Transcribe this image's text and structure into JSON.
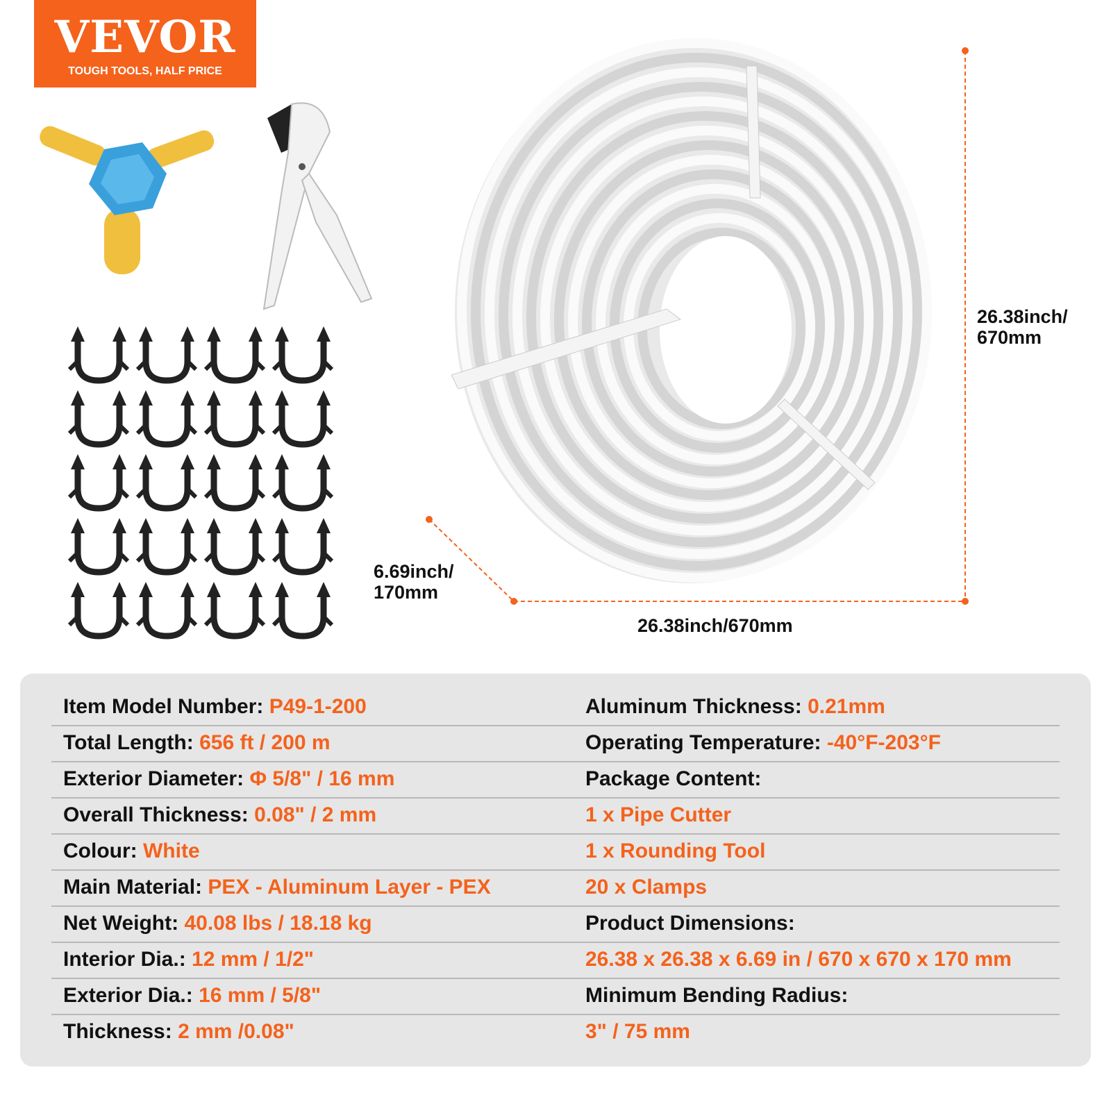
{
  "brand": {
    "name": "VEVOR",
    "tagline": "TOUGH TOOLS, HALF PRICE",
    "color": "#f4621c"
  },
  "dimensions": {
    "height": "26.38inch/\n670mm",
    "height_l1": "26.38inch/",
    "height_l2": "670mm",
    "depth_l1": "6.69inch/",
    "depth_l2": "170mm",
    "width": "26.38inch/670mm"
  },
  "images": {
    "coil": "pex-pipe-coil",
    "cutter": "pipe-cutter",
    "rounding_tool": "rounding-tool",
    "clamps": 20
  },
  "specs": {
    "left": [
      {
        "label": "Item Model Number:",
        "value": "P49-1-200"
      },
      {
        "label": "Total Length:",
        "value": "656 ft / 200 m"
      },
      {
        "label": "Exterior Diameter:",
        "value": "Φ 5/8\" / 16 mm"
      },
      {
        "label": "Overall Thickness:",
        "value": "0.08\" / 2 mm"
      },
      {
        "label": "Colour:",
        "value": "White"
      },
      {
        "label": "Main Material:",
        "value": "PEX - Aluminum Layer - PEX"
      },
      {
        "label": "Net Weight:",
        "value": "40.08 lbs / 18.18 kg"
      },
      {
        "label": "Interior Dia.:",
        "value": "12 mm / 1/2\""
      },
      {
        "label": "Exterior Dia.:",
        "value": "16 mm / 5/8\""
      },
      {
        "label": "Thickness:",
        "value": "2 mm /0.08\""
      }
    ],
    "right": [
      {
        "label": "Aluminum Thickness:",
        "value": "0.21mm"
      },
      {
        "label": "Operating Temperature:",
        "value": "-40°F-203°F"
      },
      {
        "label": "Package Content:",
        "value": ""
      },
      {
        "label": "",
        "value": "1 x Pipe Cutter"
      },
      {
        "label": "",
        "value": "1 x Rounding Tool"
      },
      {
        "label": "",
        "value": "20 x Clamps"
      },
      {
        "label": "Product Dimensions:",
        "value": ""
      },
      {
        "label": "",
        "value": "26.38 x 26.38 x 6.69 in / 670 x 670 x 170 mm"
      },
      {
        "label": "Minimum Bending Radius:",
        "value": ""
      },
      {
        "label": "",
        "value": "3\" / 75 mm"
      }
    ]
  }
}
